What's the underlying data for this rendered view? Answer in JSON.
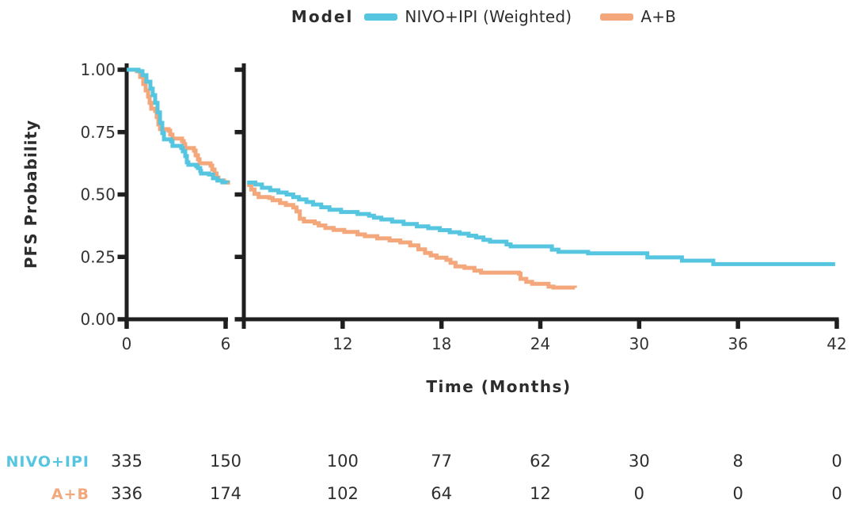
{
  "legend": {
    "title": "Model",
    "items": [
      {
        "label": "NIVO+IPI (Weighted)",
        "color": "#56C6E0"
      },
      {
        "label": "A+B",
        "color": "#F3A77B"
      }
    ]
  },
  "chart_data": {
    "type": "line",
    "subtype": "kaplan-meier-step",
    "title": "",
    "xlabel": "Time (Months)",
    "ylabel": "PFS Probability",
    "ylim": [
      0,
      1
    ],
    "grid": false,
    "legend_position": "top",
    "axis_break_after_month": 6,
    "axis_color": "#1f1f1f",
    "y_ticks": [
      {
        "value": 1.0,
        "label": "1.00"
      },
      {
        "value": 0.75,
        "label": "0.75"
      },
      {
        "value": 0.5,
        "label": "0.50"
      },
      {
        "value": 0.25,
        "label": "0.25"
      },
      {
        "value": 0.0,
        "label": "0.00"
      }
    ],
    "panels": [
      {
        "x_range": [
          0,
          6
        ],
        "ticks": [
          0,
          6
        ]
      },
      {
        "x_range": [
          6,
          42
        ],
        "ticks": [
          12,
          18,
          24,
          30,
          36,
          42
        ]
      }
    ],
    "series": [
      {
        "name": "NIVO+IPI (Weighted)",
        "id": "nivo-ipi-weighted",
        "color": "#56C6E0",
        "segments": [
          {
            "panel": 0,
            "points": [
              [
                0,
                1.0
              ],
              [
                0.55,
                1.0
              ],
              [
                0.72,
                0.994
              ],
              [
                0.96,
                0.978
              ],
              [
                1.2,
                0.952
              ],
              [
                1.44,
                0.924
              ],
              [
                1.58,
                0.898
              ],
              [
                1.73,
                0.867
              ],
              [
                1.87,
                0.829
              ],
              [
                2.02,
                0.787
              ],
              [
                2.16,
                0.746
              ],
              [
                2.26,
                0.721
              ],
              [
                2.69,
                0.714
              ],
              [
                2.78,
                0.695
              ],
              [
                3.31,
                0.686
              ],
              [
                3.41,
                0.673
              ],
              [
                3.55,
                0.654
              ],
              [
                3.65,
                0.629
              ],
              [
                3.74,
                0.619
              ],
              [
                4.22,
                0.613
              ],
              [
                4.32,
                0.606
              ],
              [
                4.46,
                0.594
              ],
              [
                4.51,
                0.584
              ],
              [
                4.99,
                0.58
              ],
              [
                5.23,
                0.565
              ],
              [
                5.5,
                0.556
              ],
              [
                5.8,
                0.549
              ],
              [
                6.1,
                0.546
              ]
            ]
          },
          {
            "panel": 1,
            "points": [
              [
                6.2,
                0.548
              ],
              [
                6.7,
                0.54
              ],
              [
                7.1,
                0.527
              ],
              [
                7.6,
                0.517
              ],
              [
                8.1,
                0.508
              ],
              [
                8.6,
                0.5
              ],
              [
                9.0,
                0.49
              ],
              [
                9.35,
                0.48
              ],
              [
                9.8,
                0.47
              ],
              [
                10.2,
                0.46
              ],
              [
                10.7,
                0.449
              ],
              [
                11.2,
                0.439
              ],
              [
                11.9,
                0.43
              ],
              [
                12.9,
                0.422
              ],
              [
                13.6,
                0.415
              ],
              [
                13.9,
                0.407
              ],
              [
                14.35,
                0.4
              ],
              [
                15.0,
                0.391
              ],
              [
                15.7,
                0.382
              ],
              [
                16.5,
                0.372
              ],
              [
                17.2,
                0.365
              ],
              [
                17.9,
                0.357
              ],
              [
                18.5,
                0.349
              ],
              [
                19.1,
                0.343
              ],
              [
                19.65,
                0.335
              ],
              [
                20.1,
                0.328
              ],
              [
                20.55,
                0.318
              ],
              [
                20.95,
                0.311
              ],
              [
                21.95,
                0.3
              ],
              [
                22.2,
                0.292
              ],
              [
                24.7,
                0.279
              ],
              [
                25.1,
                0.27
              ],
              [
                26.9,
                0.264
              ],
              [
                30.5,
                0.248
              ],
              [
                32.6,
                0.235
              ],
              [
                34.5,
                0.221
              ],
              [
                41.9,
                0.221
              ]
            ]
          }
        ]
      },
      {
        "name": "A+B",
        "id": "a-plus-b",
        "color": "#F3A77B",
        "segments": [
          {
            "panel": 0,
            "points": [
              [
                0,
                1.0
              ],
              [
                0.5,
                1.0
              ],
              [
                0.62,
                0.994
              ],
              [
                0.82,
                0.971
              ],
              [
                1.01,
                0.943
              ],
              [
                1.15,
                0.917
              ],
              [
                1.3,
                0.892
              ],
              [
                1.39,
                0.867
              ],
              [
                1.49,
                0.844
              ],
              [
                1.73,
                0.835
              ],
              [
                1.82,
                0.81
              ],
              [
                1.92,
                0.781
              ],
              [
                2.02,
                0.762
              ],
              [
                2.54,
                0.756
              ],
              [
                2.64,
                0.74
              ],
              [
                2.78,
                0.724
              ],
              [
                3.36,
                0.714
              ],
              [
                3.46,
                0.702
              ],
              [
                3.55,
                0.686
              ],
              [
                4.08,
                0.676
              ],
              [
                4.18,
                0.657
              ],
              [
                4.32,
                0.641
              ],
              [
                4.42,
                0.625
              ],
              [
                5.09,
                0.616
              ],
              [
                5.19,
                0.6
              ],
              [
                5.33,
                0.584
              ],
              [
                5.45,
                0.568
              ],
              [
                5.57,
                0.556
              ],
              [
                5.9,
                0.549
              ],
              [
                6.15,
                0.54
              ]
            ]
          },
          {
            "panel": 1,
            "points": [
              [
                6.2,
                0.538
              ],
              [
                6.45,
                0.52
              ],
              [
                6.65,
                0.503
              ],
              [
                6.9,
                0.49
              ],
              [
                7.55,
                0.486
              ],
              [
                7.75,
                0.477
              ],
              [
                8.2,
                0.466
              ],
              [
                8.55,
                0.458
              ],
              [
                9.0,
                0.448
              ],
              [
                9.2,
                0.432
              ],
              [
                9.4,
                0.403
              ],
              [
                9.65,
                0.392
              ],
              [
                10.3,
                0.385
              ],
              [
                10.55,
                0.376
              ],
              [
                10.95,
                0.366
              ],
              [
                11.45,
                0.358
              ],
              [
                12.1,
                0.35
              ],
              [
                12.9,
                0.34
              ],
              [
                13.35,
                0.333
              ],
              [
                14.1,
                0.324
              ],
              [
                14.85,
                0.316
              ],
              [
                15.5,
                0.308
              ],
              [
                16.1,
                0.296
              ],
              [
                16.6,
                0.28
              ],
              [
                17.0,
                0.266
              ],
              [
                17.35,
                0.256
              ],
              [
                17.7,
                0.247
              ],
              [
                18.3,
                0.238
              ],
              [
                18.55,
                0.226
              ],
              [
                18.85,
                0.212
              ],
              [
                19.4,
                0.206
              ],
              [
                20.0,
                0.195
              ],
              [
                20.4,
                0.187
              ],
              [
                22.7,
                0.183
              ],
              [
                22.8,
                0.162
              ],
              [
                23.15,
                0.15
              ],
              [
                23.5,
                0.142
              ],
              [
                24.5,
                0.131
              ],
              [
                24.8,
                0.127
              ],
              [
                26.1,
                0.126
              ]
            ]
          }
        ]
      }
    ]
  },
  "risk_table": {
    "columns_months": [
      0,
      6,
      12,
      18,
      24,
      30,
      36,
      42
    ],
    "rows": [
      {
        "label": "NIVO+IPI",
        "color": "#56C6E0",
        "values": [
          335,
          150,
          100,
          77,
          62,
          30,
          8,
          0
        ]
      },
      {
        "label": "A+B",
        "color": "#F3A77B",
        "values": [
          336,
          174,
          102,
          64,
          12,
          0,
          0,
          0
        ]
      }
    ]
  }
}
